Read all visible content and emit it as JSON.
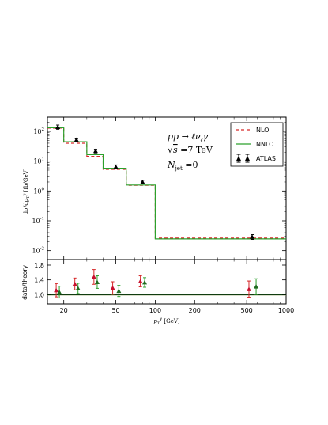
{
  "chart_data": [
    {
      "type": "step",
      "ylabel": "dσ/dp_T^γ [fb/GeV]",
      "yscale": "log",
      "xscale": "log",
      "xlim": [
        15,
        1000
      ],
      "ylim": [
        0.005,
        300
      ],
      "yticks": [
        {
          "value": 100,
          "base": "10",
          "exp": "2"
        },
        {
          "value": 10,
          "base": "10",
          "exp": "1"
        },
        {
          "value": 1,
          "base": "10",
          "exp": "0"
        },
        {
          "value": 0.1,
          "base": "10",
          "exp": "-1"
        },
        {
          "value": 0.01,
          "base": "10",
          "exp": "-2"
        }
      ],
      "bin_edges": [
        15,
        20,
        30,
        40,
        60,
        100,
        1000
      ],
      "annotations": {
        "process": "pp → ℓν_ℓγ",
        "energy": "√s = 7 TeV",
        "njet": "N_jet = 0"
      },
      "legend": {
        "position": "top-right",
        "entries": [
          "NLO",
          "NNLO",
          "ATLAS"
        ]
      },
      "series": [
        {
          "name": "NLO",
          "style": "dashed",
          "color": "#d62728",
          "values": [
            128,
            40,
            14.5,
            5.3,
            1.55,
            0.0262
          ]
        },
        {
          "name": "NNLO",
          "style": "solid",
          "color": "#2ca02c",
          "values": [
            132,
            45,
            16.5,
            5.8,
            1.58,
            0.0247
          ]
        },
        {
          "name": "ATLAS",
          "style": "points",
          "color": "#000000",
          "x": [
            18,
            25,
            35,
            50,
            80,
            550
          ],
          "y": [
            140,
            52,
            22,
            6.5,
            2.0,
            0.029
          ],
          "err": [
            0.16,
            0.14,
            0.14,
            0.15,
            0.14,
            0.18
          ]
        }
      ]
    },
    {
      "type": "ratio",
      "ylabel": "data/theory",
      "xlabel": "p_T^γ [GeV]",
      "xscale": "log",
      "xlim": [
        15,
        1000
      ],
      "ylim": [
        0.75,
        1.95
      ],
      "yticks": [
        "1.0",
        "1.4",
        "1.8"
      ],
      "xticks": [
        "20",
        "50",
        "100",
        "200",
        "500",
        "1000"
      ],
      "reference": 1.0,
      "series": [
        {
          "name": "NLO",
          "color": "#d62728",
          "x": [
            17.5,
            24.3,
            34.0,
            47.3,
            77.0,
            520
          ],
          "y": [
            1.12,
            1.29,
            1.48,
            1.18,
            1.36,
            1.15
          ],
          "err": [
            0.18,
            0.16,
            0.2,
            0.17,
            0.15,
            0.22
          ]
        },
        {
          "name": "NNLO",
          "color": "#2ca02c",
          "x": [
            18.5,
            25.7,
            36.0,
            52.7,
            83.0,
            590
          ],
          "y": [
            1.07,
            1.17,
            1.34,
            1.1,
            1.33,
            1.22
          ],
          "err": [
            0.16,
            0.14,
            0.17,
            0.15,
            0.13,
            0.21
          ]
        }
      ]
    }
  ],
  "text": {
    "process": "pp → ℓν",
    "process_sub": "ℓ",
    "process_tail": "γ",
    "energy_prefix": "√",
    "energy_s": "s",
    "energy_value": " =7 TeV",
    "njet_n": "N",
    "njet_sub": "jet",
    "njet_value": " =0",
    "ylabel_main": "dσ/dp",
    "ylabel_main_sub": "T",
    "ylabel_main_sup": "γ",
    "ylabel_main_unit": " [fb/GeV]",
    "ylabel_ratio": "data/theory",
    "xlabel_p": "p",
    "xlabel_sub": "T",
    "xlabel_sup": "γ",
    "xlabel_unit": " [GeV]"
  }
}
